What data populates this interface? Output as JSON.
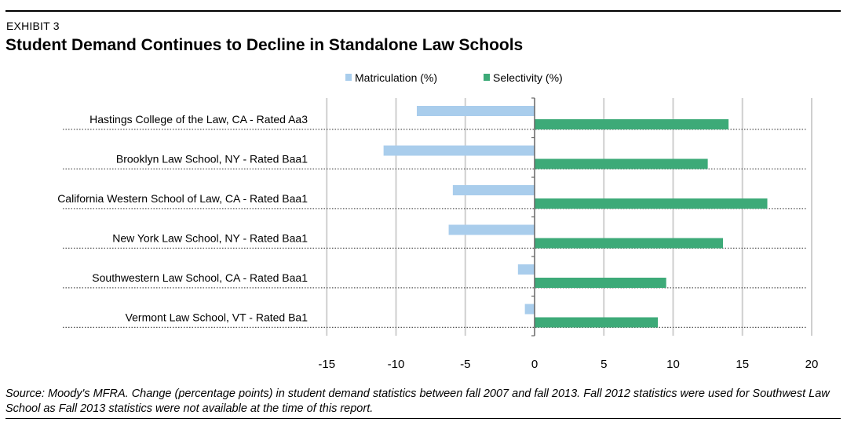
{
  "exhibit_label": "EXHIBIT 3",
  "title": "Student Demand Continues to Decline in Standalone Law Schools",
  "source_note": "Source: Moody's MFRA. Change (percentage points) in student demand statistics between fall 2007 and fall 2013. Fall 2012 statistics were used for Southwest Law School as Fall 2013 statistics were not available at the time of this report.",
  "colors": {
    "matriculation": "#a9cdec",
    "selectivity": "#3daa78",
    "gridline": "#cfcfcf",
    "axis": "#666666"
  },
  "chart_data": {
    "type": "bar",
    "orientation": "horizontal",
    "categories": [
      "Hastings College of the Law, CA - Rated Aa3",
      "Brooklyn Law School, NY - Rated Baa1",
      "California Western  School of Law, CA - Rated Baa1",
      "New York Law School, NY - Rated Baa1",
      "Southwestern Law School, CA - Rated Baa1",
      "Vermont Law School, VT - Rated Ba1"
    ],
    "series": [
      {
        "name": "Matriculation (%)",
        "values": [
          -8.5,
          -10.9,
          -5.9,
          -6.2,
          -1.2,
          -0.7
        ]
      },
      {
        "name": "Selectivity (%)",
        "values": [
          14.0,
          12.5,
          16.8,
          13.6,
          9.5,
          8.9
        ]
      }
    ],
    "xlim": [
      -15,
      20
    ],
    "xticks": [
      -15,
      -10,
      -5,
      0,
      5,
      10,
      15,
      20
    ],
    "grid": true,
    "legend_position": "top"
  }
}
